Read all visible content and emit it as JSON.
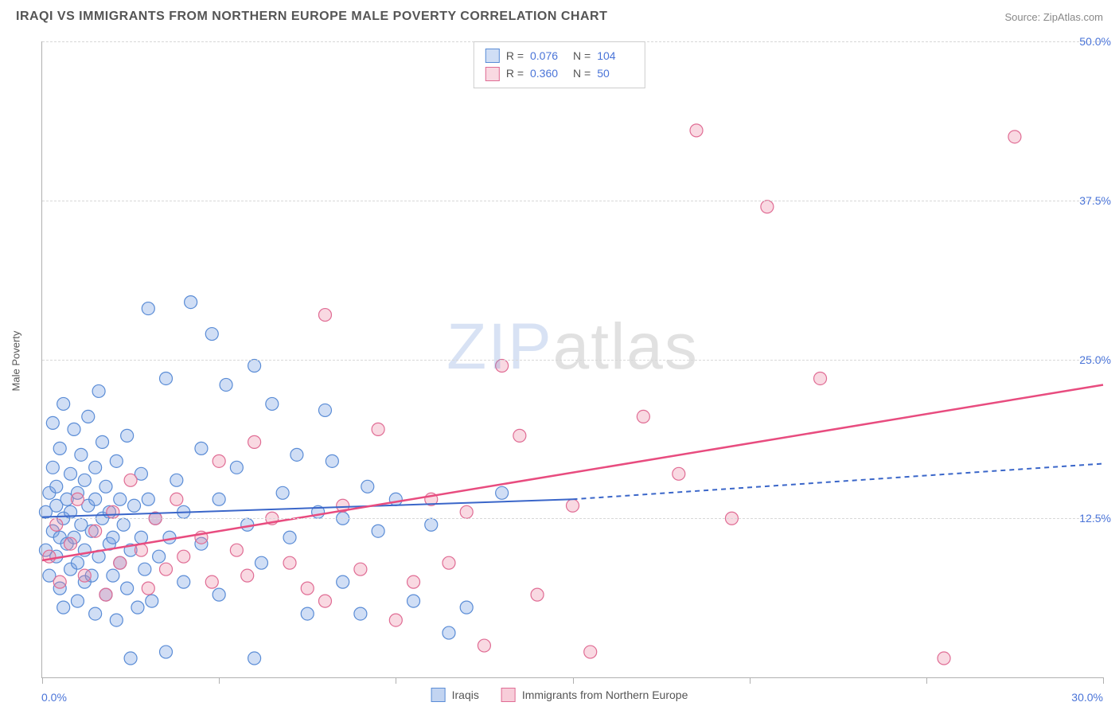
{
  "header": {
    "title": "IRAQI VS IMMIGRANTS FROM NORTHERN EUROPE MALE POVERTY CORRELATION CHART",
    "source_label": "Source: ZipAtlas.com"
  },
  "chart": {
    "type": "scatter",
    "ylabel": "Male Poverty",
    "xlim": [
      0,
      30
    ],
    "ylim": [
      0,
      50
    ],
    "xtick_positions": [
      0,
      5,
      10,
      15,
      20,
      25,
      30
    ],
    "ytick_positions": [
      12.5,
      25.0,
      37.5,
      50.0
    ],
    "xtick_labels": {
      "min": "0.0%",
      "max": "30.0%"
    },
    "ytick_labels": [
      "12.5%",
      "25.0%",
      "37.5%",
      "50.0%"
    ],
    "grid_color": "#d8d8d8",
    "axis_color": "#b0b0b0",
    "background_color": "#ffffff",
    "label_fontsize": 13,
    "tick_fontsize": 14,
    "tick_label_color": "#4a74d8",
    "marker_radius": 8,
    "marker_stroke_width": 1.2,
    "series": [
      {
        "id": "iraqis",
        "label": "Iraqis",
        "fill_color": "rgba(120,160,225,0.35)",
        "stroke_color": "#5a8cd6",
        "trend": {
          "x1": 0,
          "y1": 12.6,
          "x2_solid": 15,
          "y2_solid": 14.0,
          "x2_dash": 30,
          "y2_dash": 16.8,
          "color": "#3a66c9",
          "width": 2
        },
        "stats": {
          "R": "0.076",
          "N": "104"
        },
        "points": [
          [
            0.1,
            10.0
          ],
          [
            0.1,
            13.0
          ],
          [
            0.2,
            14.5
          ],
          [
            0.2,
            8.0
          ],
          [
            0.3,
            16.5
          ],
          [
            0.3,
            11.5
          ],
          [
            0.3,
            20.0
          ],
          [
            0.4,
            9.5
          ],
          [
            0.4,
            13.5
          ],
          [
            0.4,
            15.0
          ],
          [
            0.5,
            7.0
          ],
          [
            0.5,
            11.0
          ],
          [
            0.5,
            18.0
          ],
          [
            0.6,
            21.5
          ],
          [
            0.6,
            12.5
          ],
          [
            0.6,
            5.5
          ],
          [
            0.7,
            14.0
          ],
          [
            0.7,
            10.5
          ],
          [
            0.8,
            16.0
          ],
          [
            0.8,
            8.5
          ],
          [
            0.8,
            13.0
          ],
          [
            0.9,
            19.5
          ],
          [
            0.9,
            11.0
          ],
          [
            1.0,
            6.0
          ],
          [
            1.0,
            14.5
          ],
          [
            1.0,
            9.0
          ],
          [
            1.1,
            17.5
          ],
          [
            1.1,
            12.0
          ],
          [
            1.2,
            7.5
          ],
          [
            1.2,
            15.5
          ],
          [
            1.2,
            10.0
          ],
          [
            1.3,
            20.5
          ],
          [
            1.3,
            13.5
          ],
          [
            1.4,
            8.0
          ],
          [
            1.4,
            11.5
          ],
          [
            1.5,
            16.5
          ],
          [
            1.5,
            5.0
          ],
          [
            1.5,
            14.0
          ],
          [
            1.6,
            22.5
          ],
          [
            1.6,
            9.5
          ],
          [
            1.7,
            12.5
          ],
          [
            1.7,
            18.5
          ],
          [
            1.8,
            6.5
          ],
          [
            1.8,
            15.0
          ],
          [
            1.9,
            10.5
          ],
          [
            1.9,
            13.0
          ],
          [
            2.0,
            8.0
          ],
          [
            2.0,
            11.0
          ],
          [
            2.1,
            17.0
          ],
          [
            2.1,
            4.5
          ],
          [
            2.2,
            14.0
          ],
          [
            2.2,
            9.0
          ],
          [
            2.3,
            12.0
          ],
          [
            2.4,
            7.0
          ],
          [
            2.4,
            19.0
          ],
          [
            2.5,
            10.0
          ],
          [
            2.5,
            1.5
          ],
          [
            2.6,
            13.5
          ],
          [
            2.7,
            5.5
          ],
          [
            2.8,
            16.0
          ],
          [
            2.8,
            11.0
          ],
          [
            2.9,
            8.5
          ],
          [
            3.0,
            29.0
          ],
          [
            3.0,
            14.0
          ],
          [
            3.1,
            6.0
          ],
          [
            3.2,
            12.5
          ],
          [
            3.3,
            9.5
          ],
          [
            3.5,
            23.5
          ],
          [
            3.5,
            2.0
          ],
          [
            3.6,
            11.0
          ],
          [
            3.8,
            15.5
          ],
          [
            4.0,
            7.5
          ],
          [
            4.0,
            13.0
          ],
          [
            4.2,
            29.5
          ],
          [
            4.5,
            18.0
          ],
          [
            4.5,
            10.5
          ],
          [
            4.8,
            27.0
          ],
          [
            5.0,
            14.0
          ],
          [
            5.0,
            6.5
          ],
          [
            5.2,
            23.0
          ],
          [
            5.5,
            16.5
          ],
          [
            5.8,
            12.0
          ],
          [
            6.0,
            1.5
          ],
          [
            6.0,
            24.5
          ],
          [
            6.2,
            9.0
          ],
          [
            6.5,
            21.5
          ],
          [
            6.8,
            14.5
          ],
          [
            7.0,
            11.0
          ],
          [
            7.2,
            17.5
          ],
          [
            7.5,
            5.0
          ],
          [
            7.8,
            13.0
          ],
          [
            8.0,
            21.0
          ],
          [
            8.2,
            17.0
          ],
          [
            8.5,
            7.5
          ],
          [
            8.5,
            12.5
          ],
          [
            9.0,
            5.0
          ],
          [
            9.2,
            15.0
          ],
          [
            9.5,
            11.5
          ],
          [
            10.0,
            14.0
          ],
          [
            10.5,
            6.0
          ],
          [
            11.0,
            12.0
          ],
          [
            11.5,
            3.5
          ],
          [
            12.0,
            5.5
          ],
          [
            13.0,
            14.5
          ]
        ]
      },
      {
        "id": "n_europe",
        "label": "Immigrants from Northern Europe",
        "fill_color": "rgba(235,130,160,0.30)",
        "stroke_color": "#e06c94",
        "trend": {
          "x1": 0,
          "y1": 9.2,
          "x2_solid": 30,
          "y2_solid": 23.0,
          "color": "#e84c7f",
          "width": 2.5
        },
        "stats": {
          "R": "0.360",
          "N": "50"
        },
        "points": [
          [
            0.2,
            9.5
          ],
          [
            0.4,
            12.0
          ],
          [
            0.5,
            7.5
          ],
          [
            0.8,
            10.5
          ],
          [
            1.0,
            14.0
          ],
          [
            1.2,
            8.0
          ],
          [
            1.5,
            11.5
          ],
          [
            1.8,
            6.5
          ],
          [
            2.0,
            13.0
          ],
          [
            2.2,
            9.0
          ],
          [
            2.5,
            15.5
          ],
          [
            2.8,
            10.0
          ],
          [
            3.0,
            7.0
          ],
          [
            3.2,
            12.5
          ],
          [
            3.5,
            8.5
          ],
          [
            3.8,
            14.0
          ],
          [
            4.0,
            9.5
          ],
          [
            4.5,
            11.0
          ],
          [
            4.8,
            7.5
          ],
          [
            5.0,
            17.0
          ],
          [
            5.5,
            10.0
          ],
          [
            5.8,
            8.0
          ],
          [
            6.0,
            18.5
          ],
          [
            6.5,
            12.5
          ],
          [
            7.0,
            9.0
          ],
          [
            7.5,
            7.0
          ],
          [
            8.0,
            28.5
          ],
          [
            8.0,
            6.0
          ],
          [
            8.5,
            13.5
          ],
          [
            9.0,
            8.5
          ],
          [
            9.5,
            19.5
          ],
          [
            10.0,
            4.5
          ],
          [
            10.5,
            7.5
          ],
          [
            11.0,
            14.0
          ],
          [
            11.5,
            9.0
          ],
          [
            12.0,
            13.0
          ],
          [
            12.5,
            2.5
          ],
          [
            13.0,
            24.5
          ],
          [
            13.5,
            19.0
          ],
          [
            14.0,
            6.5
          ],
          [
            15.0,
            13.5
          ],
          [
            15.5,
            2.0
          ],
          [
            17.0,
            20.5
          ],
          [
            18.0,
            16.0
          ],
          [
            18.5,
            43.0
          ],
          [
            19.5,
            12.5
          ],
          [
            20.5,
            37.0
          ],
          [
            22.0,
            23.5
          ],
          [
            25.5,
            1.5
          ],
          [
            27.5,
            42.5
          ]
        ]
      }
    ]
  },
  "watermark": {
    "part1": "ZIP",
    "part2": "atlas"
  },
  "legend_bottom": {
    "items": [
      {
        "label": "Iraqis",
        "swatch_fill": "rgba(120,160,225,0.45)",
        "swatch_border": "#5a8cd6"
      },
      {
        "label": "Immigrants from Northern Europe",
        "swatch_fill": "rgba(235,130,160,0.40)",
        "swatch_border": "#e06c94"
      }
    ]
  }
}
